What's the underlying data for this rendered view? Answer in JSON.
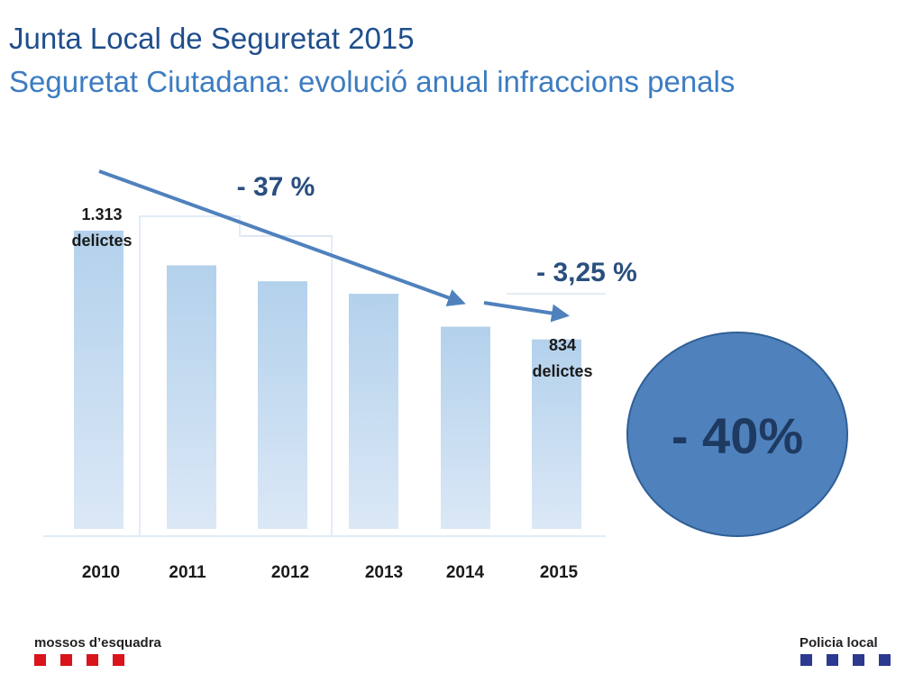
{
  "header": {
    "title": "Junta Local de Seguretat 2015",
    "subtitle": "Seguretat Ciutadana: evolució anual infraccions penals"
  },
  "chart_data": {
    "type": "bar",
    "categories": [
      "2010",
      "2011",
      "2012",
      "2013",
      "2014",
      "2015"
    ],
    "values": [
      1313,
      1160,
      1090,
      1035,
      890,
      834
    ],
    "ylim": [
      0,
      1380
    ],
    "grid": false,
    "legend": "none",
    "bar_color": "#bdd7ee",
    "annotations": {
      "first_bar_label": [
        "1.313",
        "delictes"
      ],
      "last_bar_label": [
        "834",
        "delictes"
      ],
      "trend_change_long": "- 37 %",
      "trend_change_short": "- 3,25 %",
      "total_change": "- 40%"
    },
    "colors": {
      "trend_arrow": "#4f81bd",
      "total_circle_fill": "#4f81bd",
      "total_circle_stroke": "#2f5f95",
      "label_text": "#1f3f66"
    }
  },
  "footer": {
    "left_logo": "mossos d’esquadra",
    "left_logo_color": "#d9141b",
    "right_logo": "Policia local",
    "right_logo_color": "#2b3990"
  }
}
